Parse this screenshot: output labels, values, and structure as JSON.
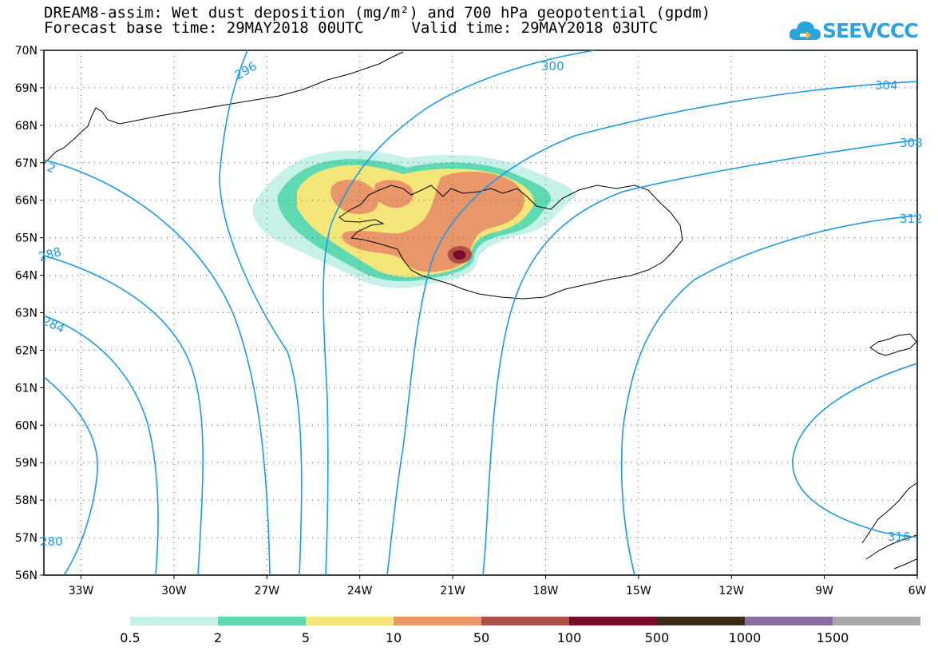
{
  "header": {
    "title_line1": "DREAM8-assim: Wet dust deposition (mg/m²) and 700 hPa geopotential (gpdm)",
    "forecast_base": "Forecast base time: 29MAY2018 00UTC",
    "valid_time": "Valid time: 29MAY2018 03UTC"
  },
  "logo": {
    "text": "SEEVCCC",
    "color": "#2aa4e0"
  },
  "map": {
    "lat_labels": [
      "70N",
      "69N",
      "68N",
      "67N",
      "66N",
      "65N",
      "64N",
      "63N",
      "62N",
      "61N",
      "60N",
      "59N",
      "58N",
      "57N",
      "56N"
    ],
    "lat_values": [
      70,
      69,
      68,
      67,
      66,
      65,
      64,
      63,
      62,
      61,
      60,
      59,
      58,
      57,
      56
    ],
    "lon_labels": [
      "33W",
      "30W",
      "27W",
      "24W",
      "21W",
      "18W",
      "15W",
      "12W",
      "9W",
      "6W"
    ],
    "lon_values": [
      -33,
      -30,
      -27,
      -24,
      -21,
      -18,
      -15,
      -12,
      -9,
      -6
    ],
    "lon_range": [
      -34.2,
      -6
    ],
    "lat_range": [
      56,
      70
    ],
    "contour_color": "#1a9ae6",
    "coast_color": "#000000",
    "contour_labels": [
      "296",
      "300",
      "304",
      "308",
      "312",
      "288",
      "284",
      "280",
      "316"
    ]
  },
  "legend": {
    "thresholds": [
      "0.5",
      "2",
      "5",
      "10",
      "50",
      "100",
      "500",
      "1000",
      "1500"
    ],
    "colors": [
      "#c5f1e9",
      "#5fd9b2",
      "#f5e67a",
      "#e9966a",
      "#b04f47",
      "#7a0c27",
      "#3a2a1a",
      "#8a6e9e",
      "#a8a8a8"
    ]
  }
}
